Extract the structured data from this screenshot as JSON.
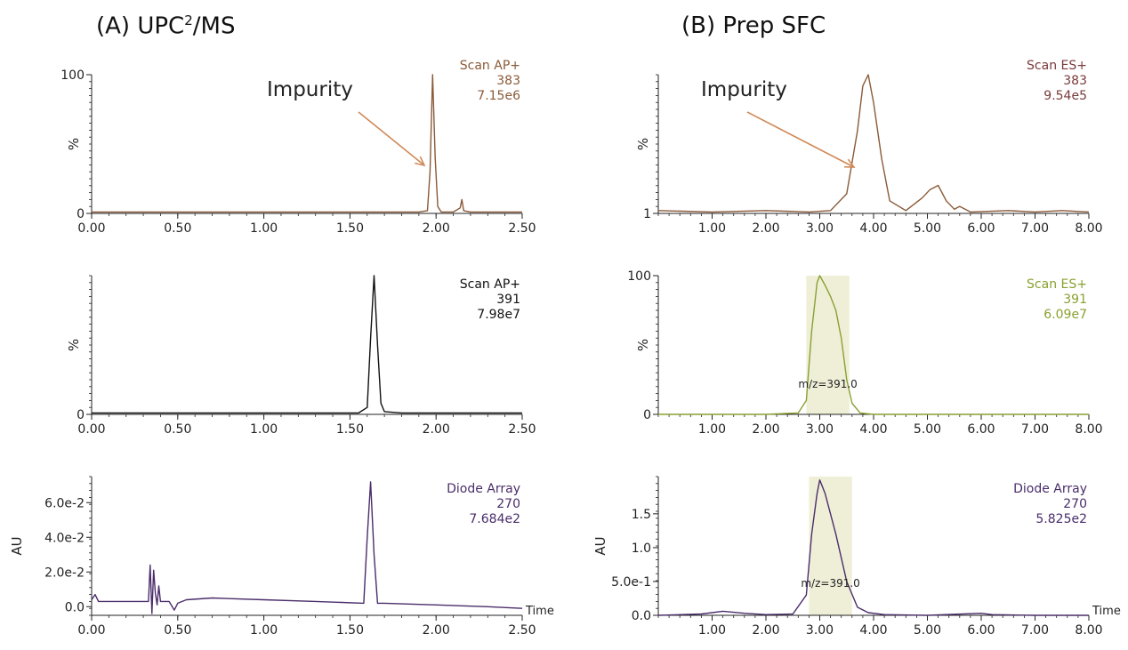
{
  "panels": {
    "a": {
      "prefix": "(A) UPC",
      "sup": "2",
      "suffix": "/MS"
    },
    "b": {
      "title": "(B) Prep SFC"
    }
  },
  "colors": {
    "brown": "#8a5a38",
    "black": "#111111",
    "purple": "#4a2d6a",
    "green": "#8aa030",
    "darkred": "#7a3a3a",
    "arrow": "#d08a58",
    "highlight": "#efefd8"
  },
  "chart_data": [
    {
      "id": "a1",
      "type": "line",
      "panel": "A",
      "info": [
        "Scan AP+",
        "383",
        "7.15e6"
      ],
      "info_color": "#8a5a38",
      "line_color": "#8a5a38",
      "ylabel": "%",
      "xlim": [
        0,
        2.5
      ],
      "ylim": [
        0,
        100
      ],
      "x_ticks": [
        "0.00",
        "0.50",
        "1.00",
        "1.50",
        "2.00",
        "2.50"
      ],
      "y_ticks": [
        {
          "value": 0,
          "label": "0"
        },
        {
          "value": 100,
          "label": "100"
        }
      ],
      "annotation": "Impurity",
      "series": [
        {
          "x": [
            0.0,
            0.5,
            1.0,
            1.3,
            1.6,
            1.8,
            1.9,
            1.95,
            1.965,
            1.98,
            1.995,
            2.01,
            2.03,
            2.1,
            2.14,
            2.15,
            2.16,
            2.2,
            2.5
          ],
          "y": [
            1,
            1,
            1,
            1,
            1,
            1,
            1,
            2,
            30,
            100,
            40,
            5,
            1,
            1,
            4,
            10,
            2,
            1,
            1
          ]
        }
      ]
    },
    {
      "id": "a2",
      "type": "line",
      "panel": "A",
      "info": [
        "Scan AP+",
        "391",
        "7.98e7"
      ],
      "info_color": "#111111",
      "line_color": "#111111",
      "ylabel": "%",
      "xlim": [
        0,
        2.5
      ],
      "ylim": [
        0,
        100
      ],
      "x_ticks": [
        "0.00",
        "0.50",
        "1.00",
        "1.50",
        "2.00",
        "2.50"
      ],
      "y_ticks": [
        {
          "value": 0,
          "label": "0"
        }
      ],
      "series": [
        {
          "x": [
            0.0,
            1.0,
            1.55,
            1.6,
            1.62,
            1.64,
            1.66,
            1.68,
            1.7,
            1.8,
            2.5
          ],
          "y": [
            1,
            1,
            1,
            5,
            55,
            100,
            50,
            8,
            2,
            1,
            1
          ]
        }
      ]
    },
    {
      "id": "a3",
      "type": "line",
      "panel": "A",
      "info": [
        "Diode Array",
        "270",
        "7.684e2"
      ],
      "info_color": "#4a2d6a",
      "line_color": "#4a2d6a",
      "ylabel": "AU",
      "xlim": [
        0,
        2.5
      ],
      "ylim": [
        -0.005,
        0.075
      ],
      "x_label_end": "Time",
      "x_ticks": [
        "0.00",
        "0.50",
        "1.00",
        "1.50",
        "2.00",
        "2.50"
      ],
      "y_ticks": [
        {
          "value": 0,
          "label": "0.0"
        },
        {
          "value": 0.02,
          "label": "2.0e-2"
        },
        {
          "value": 0.04,
          "label": "4.0e-2"
        },
        {
          "value": 0.06,
          "label": "6.0e-2"
        }
      ],
      "series": [
        {
          "x": [
            0.0,
            0.02,
            0.04,
            0.1,
            0.2,
            0.33,
            0.34,
            0.35,
            0.36,
            0.37,
            0.38,
            0.39,
            0.4,
            0.42,
            0.45,
            0.48,
            0.5,
            0.55,
            0.7,
            1.0,
            1.3,
            1.58,
            1.6,
            1.62,
            1.64,
            1.66,
            1.7,
            2.0,
            2.3,
            2.5
          ],
          "y": [
            0.004,
            0.007,
            0.003,
            0.003,
            0.003,
            0.003,
            0.024,
            -0.004,
            0.021,
            0.008,
            0.001,
            0.012,
            0.003,
            0.003,
            0.003,
            -0.002,
            0.002,
            0.004,
            0.005,
            0.004,
            0.003,
            0.002,
            0.04,
            0.072,
            0.03,
            0.002,
            0.002,
            0.001,
            0.0,
            -0.001
          ]
        }
      ]
    },
    {
      "id": "b1",
      "type": "line",
      "panel": "B",
      "info": [
        "Scan ES+",
        "383",
        "9.54e5"
      ],
      "info_color": "#7a3a3a",
      "line_color": "#8a5a38",
      "ylabel": "%",
      "xlim": [
        0.0,
        8.0
      ],
      "ylim": [
        1,
        100
      ],
      "x_ticks": [
        "1.00",
        "2.00",
        "3.00",
        "4.00",
        "5.00",
        "6.00",
        "7.00",
        "8.00"
      ],
      "y_ticks": [
        {
          "value": 1,
          "label": "1"
        }
      ],
      "annotation": "Impurity",
      "series": [
        {
          "x": [
            0.0,
            1.0,
            2.0,
            2.8,
            3.2,
            3.5,
            3.7,
            3.8,
            3.9,
            4.0,
            4.15,
            4.3,
            4.6,
            4.9,
            5.05,
            5.2,
            5.35,
            5.5,
            5.6,
            5.8,
            6.5,
            7.0,
            7.5,
            8.0
          ],
          "y": [
            3,
            2,
            3,
            2,
            3,
            15,
            60,
            92,
            100,
            80,
            40,
            10,
            3,
            12,
            18,
            21,
            10,
            4,
            6,
            2,
            3,
            2,
            3,
            2
          ]
        }
      ]
    },
    {
      "id": "b2",
      "type": "line",
      "panel": "B",
      "info": [
        "Scan ES+",
        "391",
        "6.09e7"
      ],
      "info_color": "#8aa030",
      "line_color": "#8aa030",
      "ylabel": "%",
      "xlim": [
        0.0,
        8.0
      ],
      "ylim": [
        0,
        100
      ],
      "x_ticks": [
        "1.00",
        "2.00",
        "3.00",
        "4.00",
        "5.00",
        "6.00",
        "7.00",
        "8.00"
      ],
      "y_ticks": [
        {
          "value": 0,
          "label": "0"
        },
        {
          "value": 100,
          "label": "100"
        }
      ],
      "highlight": [
        2.75,
        3.55
      ],
      "mz_label": "m/z=391.0",
      "series": [
        {
          "x": [
            0.0,
            1.0,
            2.0,
            2.6,
            2.75,
            2.85,
            2.95,
            3.0,
            3.1,
            3.2,
            3.3,
            3.4,
            3.5,
            3.6,
            3.75,
            4.0,
            5.0,
            8.0
          ],
          "y": [
            0,
            0,
            0,
            1,
            10,
            60,
            95,
            100,
            93,
            85,
            75,
            55,
            25,
            8,
            1,
            0,
            0,
            0
          ]
        }
      ]
    },
    {
      "id": "b3",
      "type": "line",
      "panel": "B",
      "info": [
        "Diode Array",
        "270",
        "5.825e2"
      ],
      "info_color": "#4a2d6a",
      "line_color": "#4a2d6a",
      "ylabel": "AU",
      "xlim": [
        0.0,
        8.0
      ],
      "ylim": [
        0,
        2.05
      ],
      "x_label_end": "Time",
      "x_ticks": [
        "1.00",
        "2.00",
        "3.00",
        "4.00",
        "5.00",
        "6.00",
        "7.00",
        "8.00"
      ],
      "y_ticks": [
        {
          "value": 0,
          "label": "0.0"
        },
        {
          "value": 0.5,
          "label": "5.0e-1"
        },
        {
          "value": 1.0,
          "label": "1.0"
        },
        {
          "value": 1.5,
          "label": "1.5"
        }
      ],
      "highlight": [
        2.8,
        3.6
      ],
      "mz_label": "m/z=391.0",
      "series": [
        {
          "x": [
            0.0,
            0.8,
            1.2,
            1.6,
            2.0,
            2.5,
            2.75,
            2.85,
            2.95,
            3.0,
            3.1,
            3.3,
            3.5,
            3.7,
            3.9,
            4.2,
            5.0,
            6.0,
            6.2,
            7.0,
            8.0
          ],
          "y": [
            0.0,
            0.02,
            0.06,
            0.03,
            0.01,
            0.02,
            0.3,
            1.2,
            1.8,
            2.0,
            1.8,
            1.2,
            0.5,
            0.12,
            0.04,
            0.01,
            0.0,
            0.03,
            0.01,
            0.0,
            0.0
          ]
        }
      ]
    }
  ]
}
